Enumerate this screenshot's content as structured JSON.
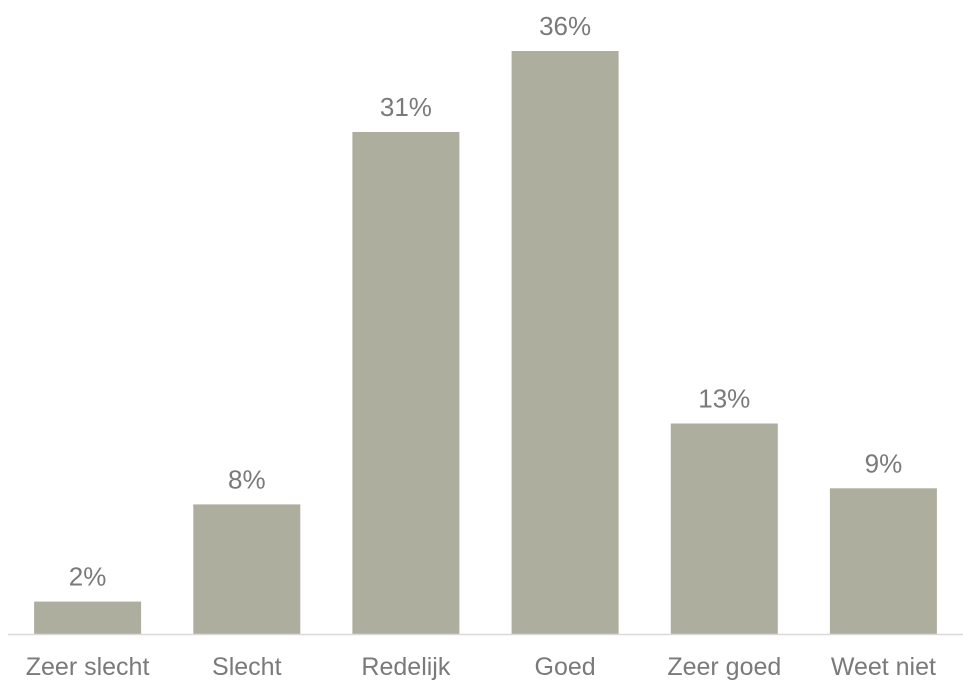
{
  "chart_data": {
    "type": "bar",
    "categories": [
      "Zeer slecht",
      "Slecht",
      "Redelijk",
      "Goed",
      "Zeer goed",
      "Weet niet"
    ],
    "values": [
      2,
      8,
      31,
      36,
      13,
      9
    ],
    "data_labels": [
      "2%",
      "8%",
      "31%",
      "36%",
      "13%",
      "9%"
    ],
    "unit": "%",
    "title": "",
    "xlabel": "",
    "ylabel": "",
    "ylim": [
      0,
      36
    ],
    "grid": false,
    "legend": "none",
    "colors": {
      "bar": "#aeae9e",
      "axis": "#d9d9d9",
      "text": "#7a7a7a"
    }
  }
}
